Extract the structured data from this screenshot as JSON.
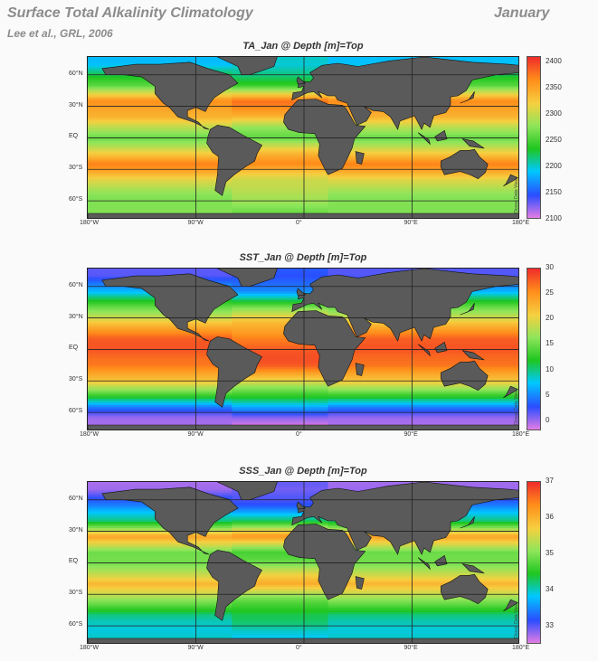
{
  "header": {
    "title": "Surface Total Alkalinity Climatology",
    "month": "January",
    "citation": "Lee et al., GRL, 2006"
  },
  "colors": {
    "land": "#5a5a5a",
    "no_data": "#ffffff",
    "ramp": [
      "#e37de3",
      "#2b4dff",
      "#00c8ff",
      "#1fc61f",
      "#8ee55a",
      "#f5d040",
      "#ff8c1a",
      "#ef2b2b"
    ]
  },
  "credit": "Ocean Data View",
  "chart_data": [
    {
      "type": "heatmap",
      "title": "TA_Jan @ Depth [m]=Top",
      "variable": "TA",
      "x_ticks": [
        "180°W",
        "90°W",
        "0°",
        "90°E",
        "180°E"
      ],
      "y_ticks": [
        "60°N",
        "30°N",
        "EQ",
        "30°S",
        "60°S"
      ],
      "colorbar": {
        "ticks": [
          "2400",
          "2350",
          "2300",
          "2250",
          "2200",
          "2150",
          "2100"
        ],
        "range": [
          2100,
          2410
        ]
      },
      "zonal_profile": [
        {
          "lat": 70,
          "value": 2190
        },
        {
          "lat": 50,
          "value": 2250
        },
        {
          "lat": 35,
          "value": 2370
        },
        {
          "lat": 20,
          "value": 2340
        },
        {
          "lat": 10,
          "value": 2290
        },
        {
          "lat": 0,
          "value": 2260
        },
        {
          "lat": -15,
          "value": 2330
        },
        {
          "lat": -25,
          "value": 2370
        },
        {
          "lat": -40,
          "value": 2310
        },
        {
          "lat": -55,
          "value": 2280
        },
        {
          "lat": -70,
          "value": 2270
        }
      ]
    },
    {
      "type": "heatmap",
      "title": "SST_Jan @ Depth [m]=Top",
      "variable": "SST",
      "x_ticks": [
        "180°W",
        "90°W",
        "0°",
        "90°E",
        "180°E"
      ],
      "y_ticks": [
        "60°N",
        "30°N",
        "EQ",
        "30°S",
        "60°S"
      ],
      "colorbar": {
        "ticks": [
          "30",
          "25",
          "20",
          "15",
          "10",
          "5",
          "0"
        ],
        "range": [
          -2,
          30
        ]
      },
      "zonal_profile": [
        {
          "lat": 70,
          "value": 2
        },
        {
          "lat": 55,
          "value": 6
        },
        {
          "lat": 40,
          "value": 15
        },
        {
          "lat": 25,
          "value": 22
        },
        {
          "lat": 10,
          "value": 27
        },
        {
          "lat": 0,
          "value": 28
        },
        {
          "lat": -15,
          "value": 27
        },
        {
          "lat": -30,
          "value": 21
        },
        {
          "lat": -45,
          "value": 12
        },
        {
          "lat": -55,
          "value": 5
        },
        {
          "lat": -65,
          "value": 0
        },
        {
          "lat": -72,
          "value": -1
        }
      ]
    },
    {
      "type": "heatmap",
      "title": "SSS_Jan @ Depth [m]=Top",
      "variable": "SSS",
      "x_ticks": [
        "180°W",
        "90°W",
        "0°",
        "90°E",
        "180°E"
      ],
      "y_ticks": [
        "60°N",
        "30°N",
        "EQ",
        "30°S",
        "60°S"
      ],
      "colorbar": {
        "ticks": [
          "37",
          "36",
          "35",
          "34",
          "33"
        ],
        "range": [
          32.5,
          37
        ]
      },
      "zonal_profile": [
        {
          "lat": 70,
          "value": 32.8
        },
        {
          "lat": 55,
          "value": 33.3
        },
        {
          "lat": 40,
          "value": 34.2
        },
        {
          "lat": 25,
          "value": 36.2
        },
        {
          "lat": 10,
          "value": 34.8
        },
        {
          "lat": 0,
          "value": 34.9
        },
        {
          "lat": -20,
          "value": 36.0
        },
        {
          "lat": -35,
          "value": 35.0
        },
        {
          "lat": -50,
          "value": 34.2
        },
        {
          "lat": -65,
          "value": 33.9
        }
      ]
    }
  ]
}
